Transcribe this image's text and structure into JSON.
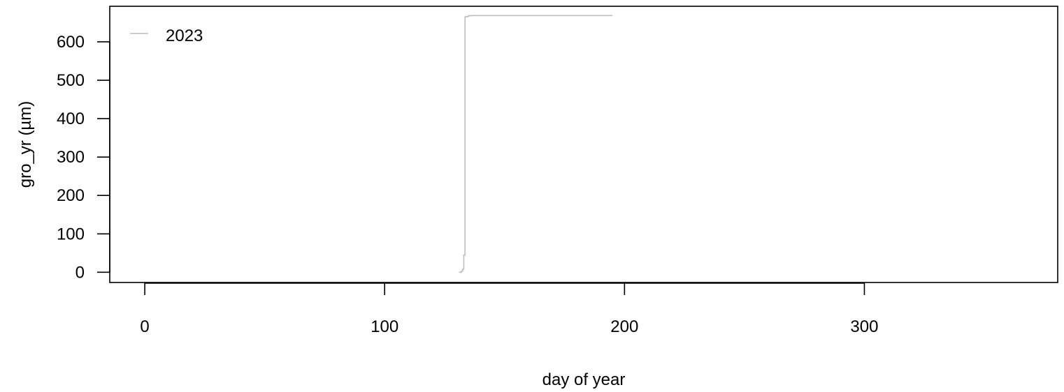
{
  "chart_data": {
    "type": "line",
    "xlabel": "day of year",
    "ylabel": "gro_yr (µm)",
    "xlim": [
      -14.6,
      380.6
    ],
    "ylim": [
      -26.6,
      692.6
    ],
    "xticks": [
      0,
      100,
      200,
      300
    ],
    "yticks": [
      0,
      100,
      200,
      300,
      400,
      500,
      600
    ],
    "grid": false,
    "legend": {
      "position": "top-left",
      "entries": [
        "2023"
      ]
    },
    "series": [
      {
        "name": "2023",
        "color": "#bebebe",
        "step": true,
        "x": [
          131,
          132,
          132.5,
          133,
          133.5,
          134,
          135,
          136,
          140,
          150,
          160,
          170,
          180,
          190,
          195
        ],
        "y": [
          0,
          3,
          8,
          45,
          665,
          666,
          668,
          668.5,
          668.5,
          668.5,
          668.5,
          668.5,
          668.5,
          668.5,
          668.5
        ]
      }
    ]
  }
}
